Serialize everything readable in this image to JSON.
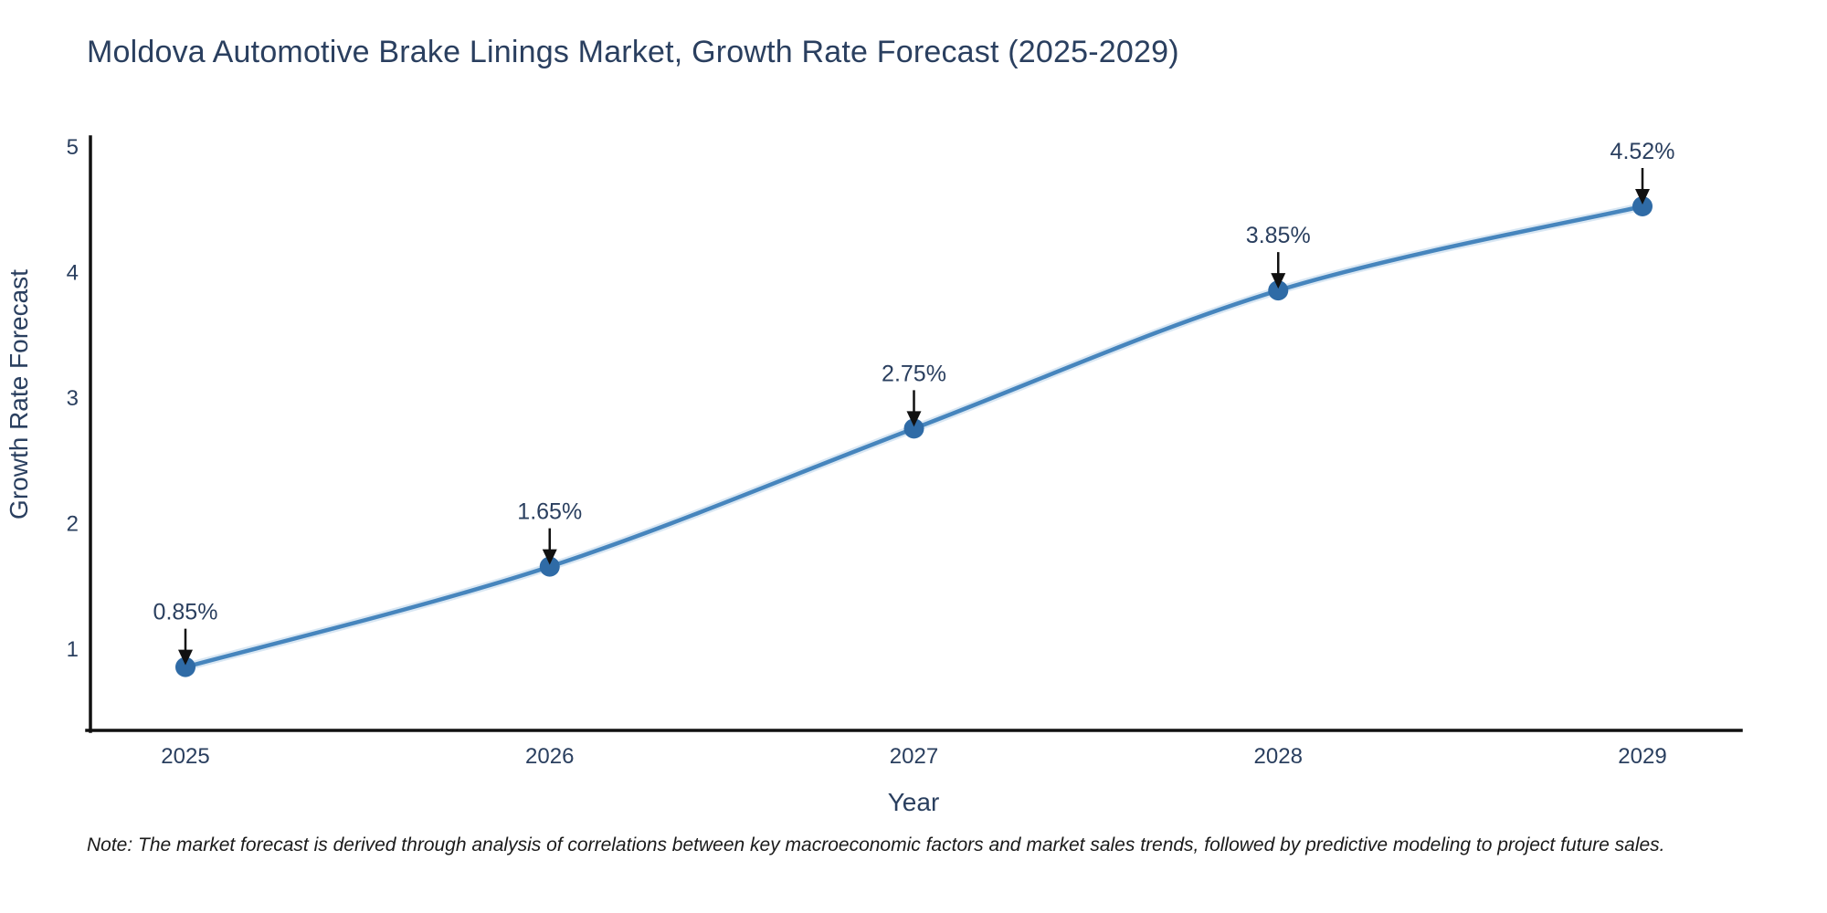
{
  "title": "Moldova Automotive Brake Linings Market, Growth Rate Forecast (2025-2029)",
  "note": "Note: The market forecast is derived through analysis of correlations between key macroeconomic factors and market sales trends, followed by predictive modeling to project future sales.",
  "chart_data": {
    "type": "line",
    "title": "Moldova Automotive Brake Linings Market, Growth Rate Forecast (2025-2029)",
    "xlabel": "Year",
    "ylabel": "Growth Rate Forecast",
    "categories": [
      "2025",
      "2026",
      "2027",
      "2028",
      "2029"
    ],
    "series": [
      {
        "name": "Growth Rate Forecast",
        "values": [
          0.85,
          1.65,
          2.75,
          3.85,
          4.52
        ]
      }
    ],
    "point_labels": [
      "0.85%",
      "1.65%",
      "2.75%",
      "3.85%",
      "4.52%"
    ],
    "y_ticks": [
      1,
      2,
      3,
      4,
      5
    ],
    "ylim": [
      0.4,
      5.05
    ],
    "grid": false,
    "legend": "none",
    "line_shape": "spline",
    "colors": {
      "line": "#4685bd",
      "line_halo": "#b9d3ea",
      "marker": "#2f6ba6",
      "axis": "#111111",
      "tick_text": "#2a3f5f",
      "annotation_text": "#2a3f5f",
      "annotation_arrow": "#111111",
      "title_text": "#2a3f5f",
      "note_text": "#1a1a1a",
      "background": "#ffffff"
    }
  }
}
